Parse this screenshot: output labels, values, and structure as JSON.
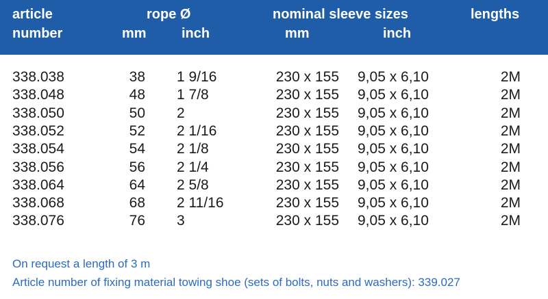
{
  "header": {
    "article_line1": "article",
    "article_line2": "number",
    "rope": "rope Ø",
    "rope_mm": "mm",
    "rope_inch": "inch",
    "sleeve": "nominal sleeve sizes",
    "sleeve_mm": "mm",
    "sleeve_inch": "inch",
    "lengths": "lengths"
  },
  "rows": [
    {
      "article": "338.038",
      "mm": "38",
      "inch": "1 9/16",
      "size_mm": "230 x 155",
      "size_inch": "9,05 x 6,10",
      "length": "2M"
    },
    {
      "article": "338.048",
      "mm": "48",
      "inch": "1 7/8",
      "size_mm": "230 x 155",
      "size_inch": "9,05 x 6,10",
      "length": "2M"
    },
    {
      "article": "338.050",
      "mm": "50",
      "inch": "2",
      "size_mm": "230 x 155",
      "size_inch": "9,05 x 6,10",
      "length": "2M"
    },
    {
      "article": "338.052",
      "mm": "52",
      "inch": "2 1/16",
      "size_mm": "230 x 155",
      "size_inch": "9,05 x 6,10",
      "length": "2M"
    },
    {
      "article": "338.054",
      "mm": "54",
      "inch": "2 1/8",
      "size_mm": "230 x 155",
      "size_inch": "9,05 x 6,10",
      "length": "2M"
    },
    {
      "article": "338.056",
      "mm": "56",
      "inch": "2 1/4",
      "size_mm": "230 x 155",
      "size_inch": "9,05 x 6,10",
      "length": "2M"
    },
    {
      "article": "338.064",
      "mm": "64",
      "inch": "2 5/8",
      "size_mm": "230 x 155",
      "size_inch": "9,05 x 6,10",
      "length": "2M"
    },
    {
      "article": "338.068",
      "mm": "68",
      "inch": "2 11/16",
      "size_mm": "230 x 155",
      "size_inch": "9,05 x 6,10",
      "length": "2M"
    },
    {
      "article": "338.076",
      "mm": "76",
      "inch": "3",
      "size_mm": "230 x 155",
      "size_inch": "9,05 x 6,10",
      "length": "2M"
    }
  ],
  "footer": {
    "note1": "On request a length of 3 m",
    "note2": "Article number of fixing material towing shoe (sets of bolts, nuts and washers): 339.027"
  },
  "colors": {
    "header_bg": "#1f5da8",
    "footer_text": "#2a6bbd"
  }
}
